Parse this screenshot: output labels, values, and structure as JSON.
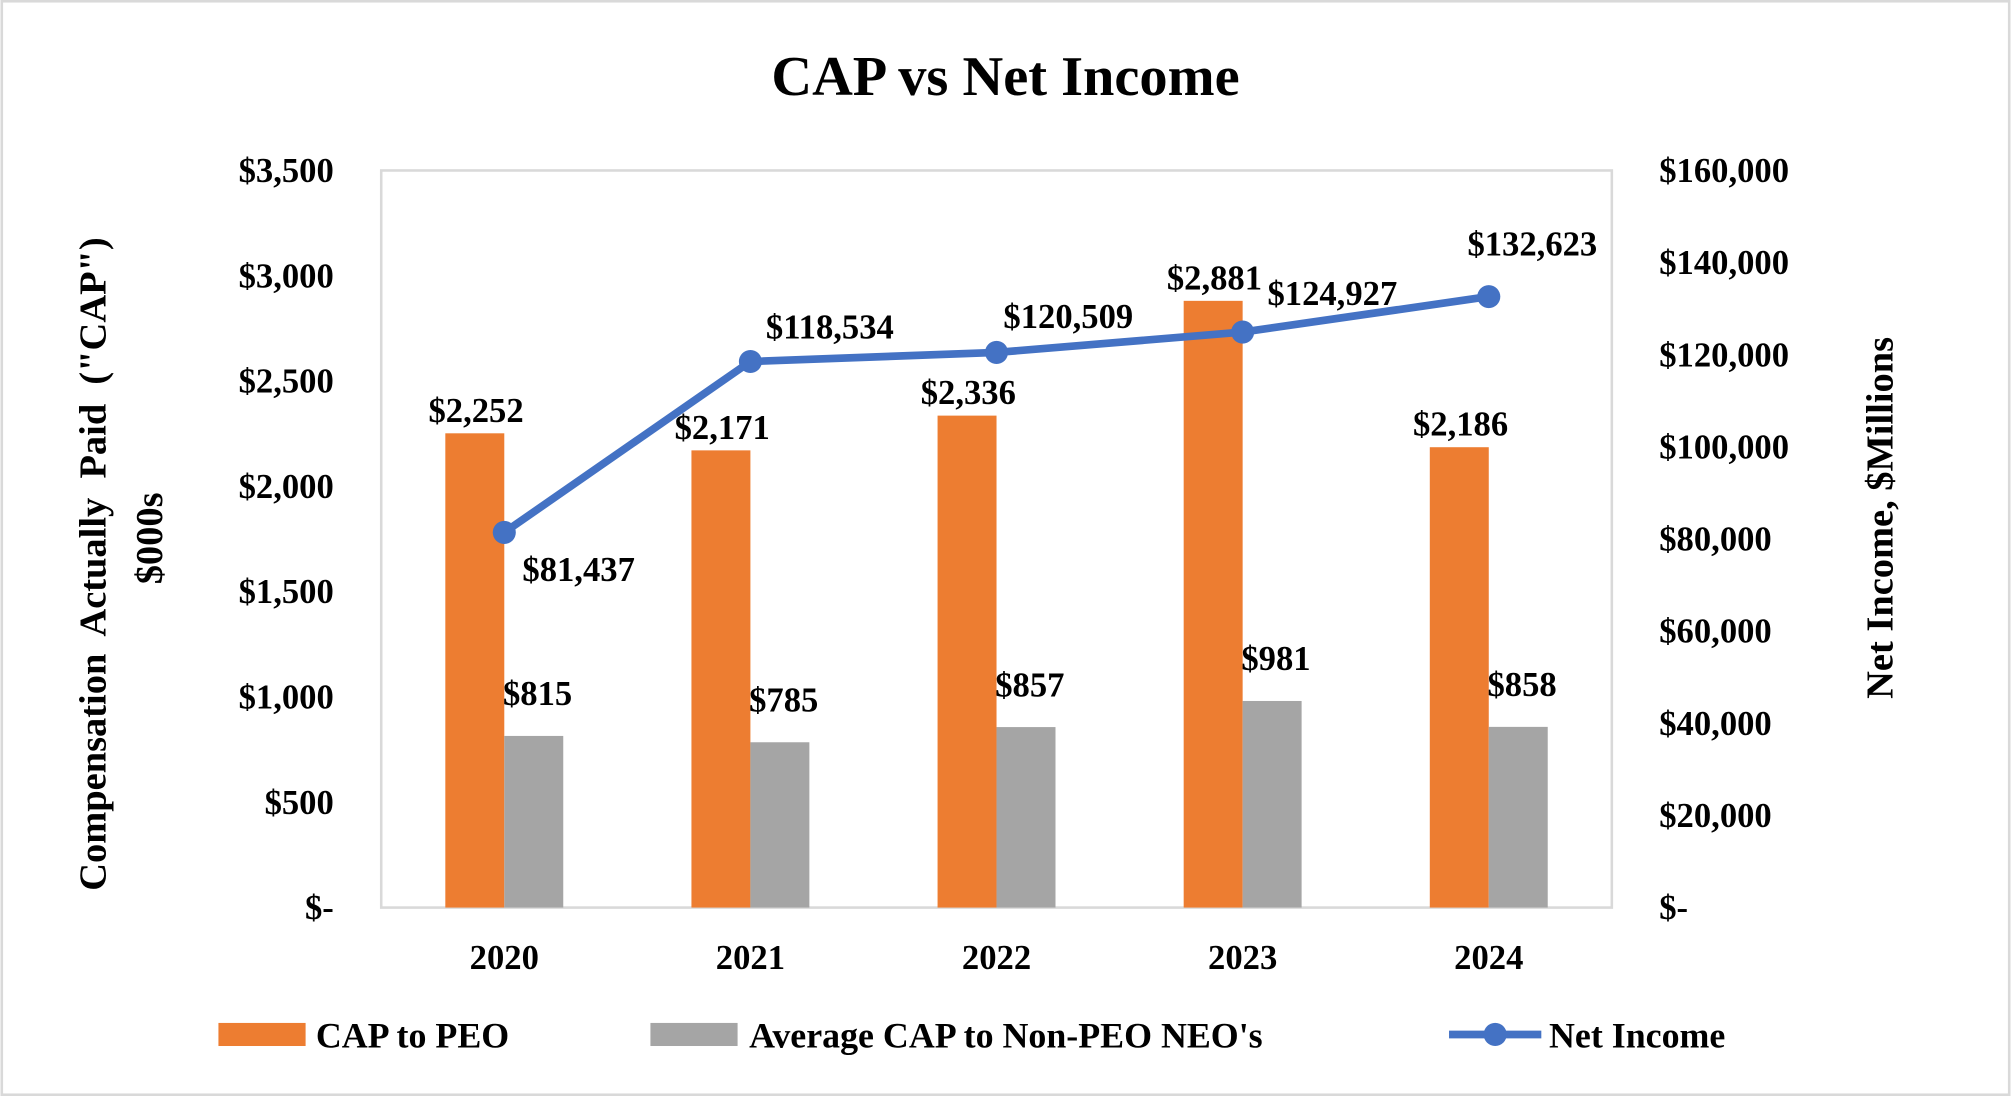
{
  "chart_data": {
    "type": "bar",
    "title": "CAP vs Net Income",
    "categories": [
      "2020",
      "2021",
      "2022",
      "2023",
      "2024"
    ],
    "ylabel_left_line1": "Compensation  Actually  Paid  (\"CAP\")",
    "ylabel_left_line2": "$000s",
    "ylabel_right": "Net Income, $Millions",
    "ylim_left": [
      0,
      3500
    ],
    "ylim_right": [
      0,
      160000
    ],
    "left_ticks": [
      "$-",
      "$500",
      "$1,000",
      "$1,500",
      "$2,000",
      "$2,500",
      "$3,000",
      "$3,500"
    ],
    "right_ticks": [
      "$-",
      "$20,000",
      "$40,000",
      "$60,000",
      "$80,000",
      "$100,000",
      "$120,000",
      "$140,000",
      "$160,000"
    ],
    "grid": false,
    "legend_position": "bottom",
    "series": [
      {
        "name": "CAP to PEO",
        "type": "bar",
        "axis": "left",
        "color": "#ED7D31",
        "values": [
          2252,
          2171,
          2336,
          2881,
          2186
        ],
        "labels": [
          "$2,252",
          "$2,171",
          "$2,336",
          "$2,881",
          "$2,186"
        ]
      },
      {
        "name": "Average CAP to Non-PEO NEO's",
        "type": "bar",
        "axis": "left",
        "color": "#A5A5A5",
        "values": [
          815,
          785,
          857,
          981,
          858
        ],
        "labels": [
          "$815",
          "$785",
          "$857",
          "$981",
          "$858"
        ]
      },
      {
        "name": "Net Income",
        "type": "line",
        "axis": "right",
        "color": "#4472C4",
        "values": [
          81437,
          118534,
          120509,
          124927,
          132623
        ],
        "labels": [
          "$81,437",
          "$118,534",
          "$120,509",
          "$124,927",
          "$132,623"
        ]
      }
    ]
  }
}
